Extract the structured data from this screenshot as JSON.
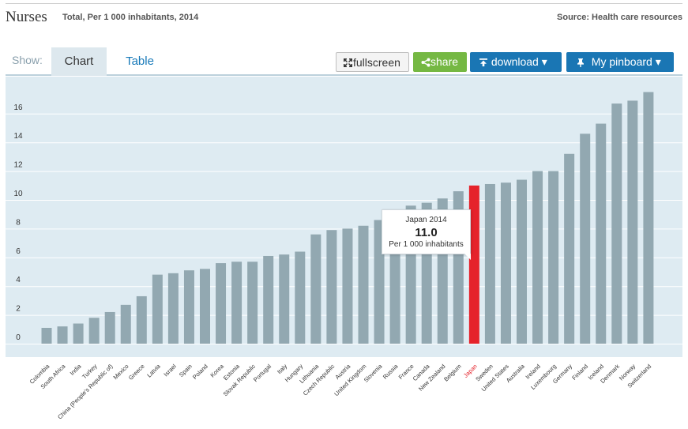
{
  "header": {
    "title": "Nurses",
    "subtitle": "Total, Per 1 000 inhabitants, 2014",
    "source": "Source: Health care resources"
  },
  "toolbar": {
    "show_label": "Show:",
    "tab_chart": "Chart",
    "tab_table": "Table",
    "fullscreen_label": "fullscreen",
    "share_label": "share",
    "download_label": "download ▾",
    "pinboard_label": "My pinboard ▾"
  },
  "colors": {
    "bar": "#92a8b1",
    "highlight": "#e5232b",
    "plot_bg": "#deebf2",
    "highlight_label": "#e5232b"
  },
  "tooltip": {
    "heading": "Japan 2014",
    "value": "11.0",
    "unit": "Per 1 000 inhabitants"
  },
  "chart_data": {
    "type": "bar",
    "title": "Nurses",
    "subtitle": "Total, Per 1 000 inhabitants, 2014",
    "ylim": [
      0,
      18
    ],
    "yticks": [
      0,
      2,
      4,
      6,
      8,
      10,
      12,
      14,
      16
    ],
    "grid": true,
    "highlight": "Japan",
    "categories": [
      "Colombia",
      "South Africa",
      "India",
      "Turkey",
      "China (People's Republic of)",
      "Mexico",
      "Greece",
      "Latvia",
      "Israel",
      "Spain",
      "Poland",
      "Korea",
      "Estonia",
      "Slovak Republic",
      "Portugal",
      "Italy",
      "Hungary",
      "Lithuania",
      "Czech Republic",
      "Austria",
      "United Kingdom",
      "Slovenia",
      "Russia",
      "France",
      "Canada",
      "New Zealand",
      "Belgium",
      "Japan",
      "Sweden",
      "United States",
      "Australia",
      "Ireland",
      "Luxembourg",
      "Germany",
      "Finland",
      "Iceland",
      "Denmark",
      "Norway",
      "Switzerland"
    ],
    "values": [
      1.1,
      1.2,
      1.4,
      1.8,
      2.2,
      2.7,
      3.3,
      4.8,
      4.9,
      5.1,
      5.2,
      5.6,
      5.7,
      5.7,
      6.1,
      6.2,
      6.4,
      7.6,
      7.9,
      8.0,
      8.2,
      8.6,
      8.9,
      9.6,
      9.8,
      10.1,
      10.6,
      11.0,
      11.1,
      11.2,
      11.4,
      12.0,
      12.0,
      13.2,
      14.6,
      15.3,
      16.7,
      16.9,
      17.5
    ]
  }
}
